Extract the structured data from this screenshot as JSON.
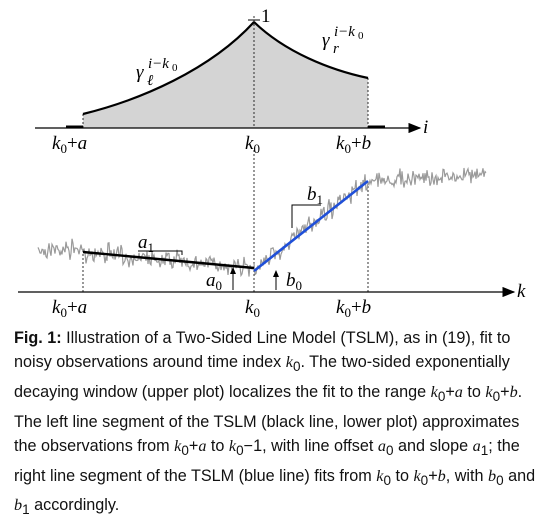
{
  "upper_plot": {
    "peak_label": "1",
    "left_curve_label": "γℓ^(i−k0)",
    "right_curve_label": "γr^(i−k0)",
    "axis_label": "i",
    "ticks": [
      "k0+a",
      "k0",
      "k0+b"
    ]
  },
  "lower_plot": {
    "axis_label": "k",
    "ticks": [
      "k0+a",
      "k0",
      "k0+b"
    ],
    "annotations": [
      "a1",
      "a0",
      "b1",
      "b0"
    ],
    "colors": {
      "noise": "#9a9a9a",
      "left_line": "#000000",
      "right_line": "#1f4fd8",
      "window_fill": "#d4d4d4"
    }
  },
  "caption": {
    "label": "Fig. 1:",
    "text": "Illustration of a Two-Sided Line Model (TSLM), as in (19), fit to noisy observations around time index k0. The two-sided exponentially decaying window (upper plot) localizes the fit to the range k0+a to k0+b. The left line segment of the TSLM (black line, lower plot) approximates the observations from k0+a to k0−1, with line offset a0 and slope a1; the right line segment of the TSLM (blue line) fits from k0 to k0+b, with b0 and b1 accordingly."
  }
}
